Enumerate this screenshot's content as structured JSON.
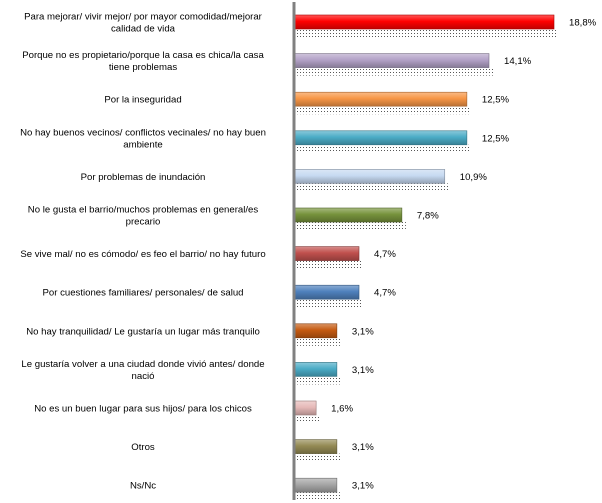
{
  "chart_data": {
    "type": "bar",
    "orientation": "horizontal",
    "categories": [
      [
        "Para mejorar/ vivir mejor/ por mayor comodidad/mejorar",
        "calidad de vida"
      ],
      [
        "Porque no es propietario/porque la casa es chica/la casa",
        "tiene problemas"
      ],
      [
        "Por la inseguridad"
      ],
      [
        "No hay buenos vecinos/ conflictos vecinales/ no hay buen",
        "ambiente"
      ],
      [
        "Por problemas de inundación"
      ],
      [
        "No le gusta el barrio/muchos problemas en general/es",
        "precario"
      ],
      [
        "Se vive mal/ no es cómodo/ es feo el barrio/ no hay futuro"
      ],
      [
        "Por cuestiones familiares/ personales/ de salud"
      ],
      [
        "No hay tranquilidad/ Le gustaría un lugar más tranquilo"
      ],
      [
        "Le gustaría volver a una ciudad donde vivió antes/ donde",
        "nació"
      ],
      [
        "No es un buen lugar para sus hijos/ para los chicos"
      ],
      [
        "Otros"
      ],
      [
        "Ns/Nc"
      ]
    ],
    "values": [
      18.8,
      14.1,
      12.5,
      12.5,
      10.9,
      7.8,
      4.7,
      4.7,
      3.1,
      3.1,
      1.6,
      3.1,
      3.1
    ],
    "value_labels": [
      "18,8%",
      "14,1%",
      "12,5%",
      "12,5%",
      "10,9%",
      "7,8%",
      "4,7%",
      "4,7%",
      "3,1%",
      "3,1%",
      "1,6%",
      "3,1%",
      "3,1%"
    ],
    "colors": [
      "#ff0000",
      "#b3a2c7",
      "#f79646",
      "#4bacc6",
      "#c6d9f1",
      "#77933c",
      "#c0504d",
      "#4f81bd",
      "#c55a11",
      "#4bacc6",
      "#e6b9b8",
      "#948a54",
      "#a6a6a6"
    ],
    "xlim": [
      0,
      20
    ],
    "title": "",
    "xlabel": "",
    "ylabel": "",
    "grid": false,
    "legend": "none"
  }
}
